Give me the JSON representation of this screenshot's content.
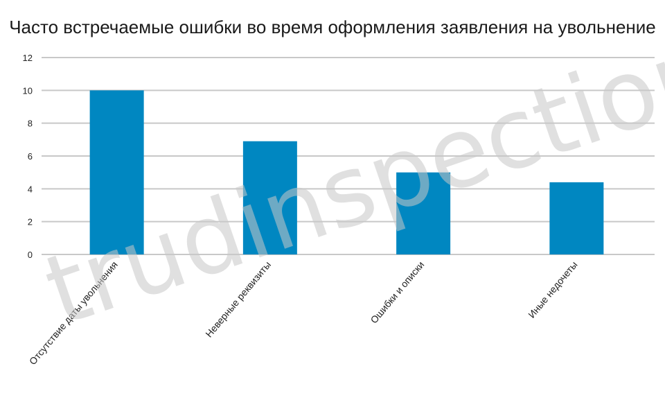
{
  "chart_data": {
    "type": "bar",
    "title": "Часто встречаемые ошибки во время оформления заявления на увольнение",
    "categories": [
      "Отсутствие даты увольнения",
      "Неверные реквизиты",
      "Ошибки и описки",
      "Иные недочеты"
    ],
    "values": [
      10,
      6.9,
      5,
      4.4
    ],
    "xlabel": "",
    "ylabel": "",
    "ylim": [
      0,
      12
    ],
    "yticks": [
      0,
      2,
      4,
      6,
      8,
      10,
      12
    ],
    "grid": true,
    "bar_color": "#0087c1",
    "grid_color": "#c8c8c8"
  },
  "watermark": "trudinspection.ru"
}
